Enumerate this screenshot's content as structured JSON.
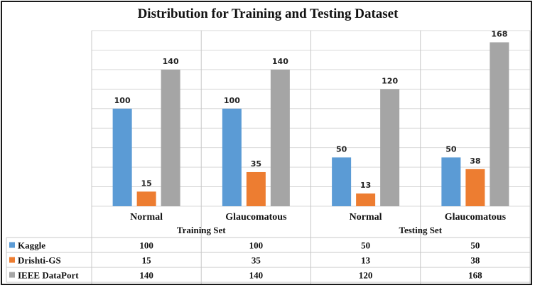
{
  "chart_data": {
    "type": "bar",
    "title": "Distribution for Training and Testing Dataset",
    "groups": [
      {
        "label": "Training Set",
        "categories": [
          "Normal",
          "Glaucomatous"
        ]
      },
      {
        "label": "Testing Set",
        "categories": [
          "Normal",
          "Glaucomatous"
        ]
      }
    ],
    "categories": [
      "Normal",
      "Glaucomatous",
      "Normal",
      "Glaucomatous"
    ],
    "series": [
      {
        "name": "Kaggle",
        "color": "#5b9bd5",
        "values": [
          100,
          100,
          50,
          50
        ]
      },
      {
        "name": "Drishti-GS",
        "color": "#ed7d31",
        "values": [
          15,
          35,
          13,
          38
        ]
      },
      {
        "name": "IEEE DataPort",
        "color": "#a5a5a5",
        "values": [
          140,
          140,
          120,
          168
        ]
      }
    ],
    "ylim": [
      0,
      180
    ],
    "grid": true,
    "legend": "data-table-below"
  }
}
